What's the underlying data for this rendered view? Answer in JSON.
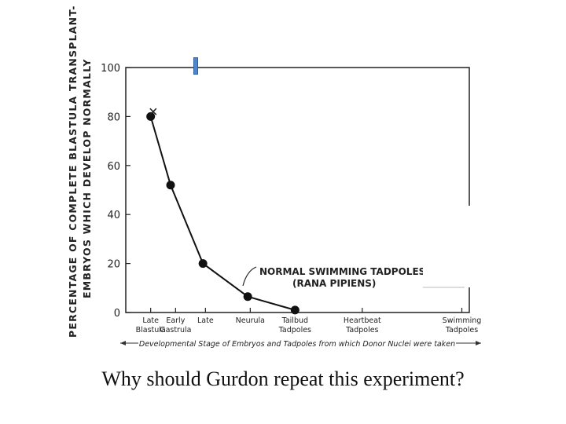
{
  "caption": "Why should Gurdon repeat this experiment?",
  "chart_data": {
    "type": "line",
    "ylabel_line1": "PERCENTAGE OF COMPLETE BLASTULA TRANSPLANT-",
    "ylabel_line2": "EMBRYOS WHICH DEVELOP NORMALLY",
    "xlabel": "Developmental Stage of Embryos and Tadpoles from which Donor Nuclei were taken",
    "ylim": [
      0,
      100
    ],
    "yticks": [
      0,
      20,
      40,
      60,
      80,
      100
    ],
    "x_categories": [
      {
        "line1": "Late",
        "line2": "Blastula",
        "x": 0
      },
      {
        "line1": "Early",
        "line2": "Gastrula",
        "x": 1
      },
      {
        "line1": "Late",
        "line2": "",
        "x": 2.2
      },
      {
        "line1": "Neurula",
        "line2": "",
        "x": 4
      },
      {
        "line1": "Tailbud",
        "line2": "Tadpoles",
        "x": 5.8
      },
      {
        "line1": "Heartbeat",
        "line2": "Tadpoles",
        "x": 8.5
      },
      {
        "line1": "Swimming",
        "line2": "Tadpoles",
        "x": 12.5
      }
    ],
    "xlim": [
      -1,
      12.8
    ],
    "series": [
      {
        "name": "NORMAL SWIMMING TADPOLES (RANA PIPIENS)",
        "points": [
          [
            0,
            80
          ],
          [
            0.8,
            52
          ],
          [
            2.1,
            20
          ],
          [
            3.9,
            6.5
          ],
          [
            5.8,
            1
          ]
        ]
      }
    ],
    "x_markers": [
      {
        "x": 0.1,
        "y": 82
      },
      {
        "x": 12.5,
        "y": 15
      }
    ],
    "annotation_line1": "NORMAL SWIMMING TADPOLES",
    "annotation_line2": "(RANA PIPIENS)",
    "grid": false,
    "line_color": "#111111"
  }
}
